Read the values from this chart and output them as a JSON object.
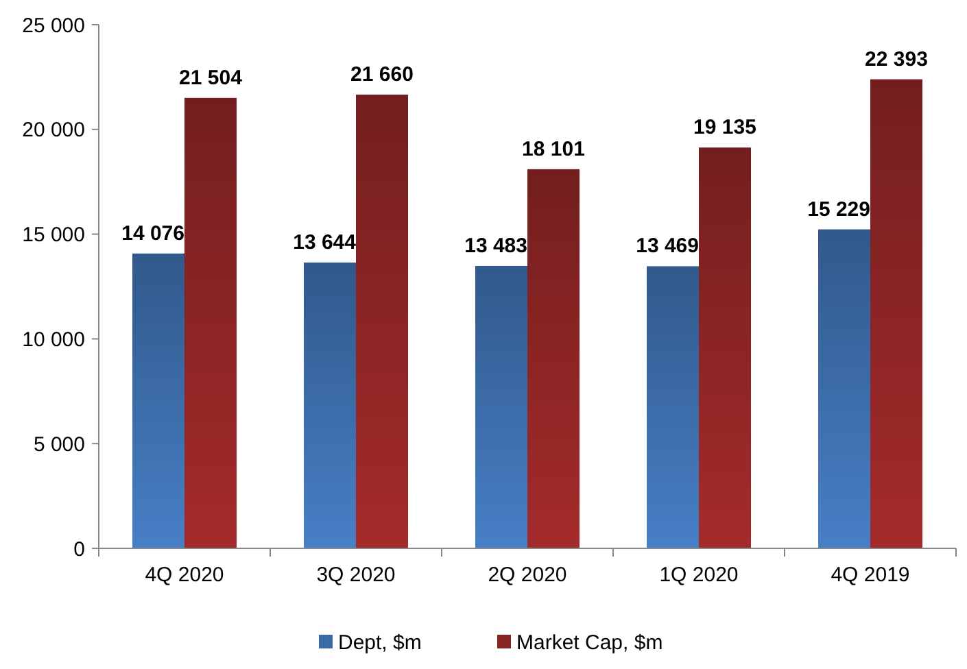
{
  "chart_data": {
    "type": "bar",
    "categories": [
      "4Q 2020",
      "3Q 2020",
      "2Q 2020",
      "1Q 2020",
      "4Q 2019"
    ],
    "series": [
      {
        "name": "Dept, $m",
        "color": "#3b6aa6",
        "values": [
          14076,
          13644,
          13483,
          13469,
          15229
        ],
        "value_labels": [
          "14 076",
          "13 644",
          "13 483",
          "13 469",
          "15 229"
        ]
      },
      {
        "name": "Market Cap, $m",
        "color": "#8a2424",
        "values": [
          21504,
          21660,
          18101,
          19135,
          22393
        ],
        "value_labels": [
          "21 504",
          "21 660",
          "18 101",
          "19 135",
          "22 393"
        ]
      }
    ],
    "ylim": [
      0,
      25000
    ],
    "yticks": [
      {
        "value": 0,
        "label": "0"
      },
      {
        "value": 5000,
        "label": "5 000"
      },
      {
        "value": 10000,
        "label": "10 000"
      },
      {
        "value": 15000,
        "label": "15 000"
      },
      {
        "value": 20000,
        "label": "20 000"
      },
      {
        "value": 25000,
        "label": "25 000"
      }
    ],
    "grid": false,
    "legend": "bottom"
  }
}
